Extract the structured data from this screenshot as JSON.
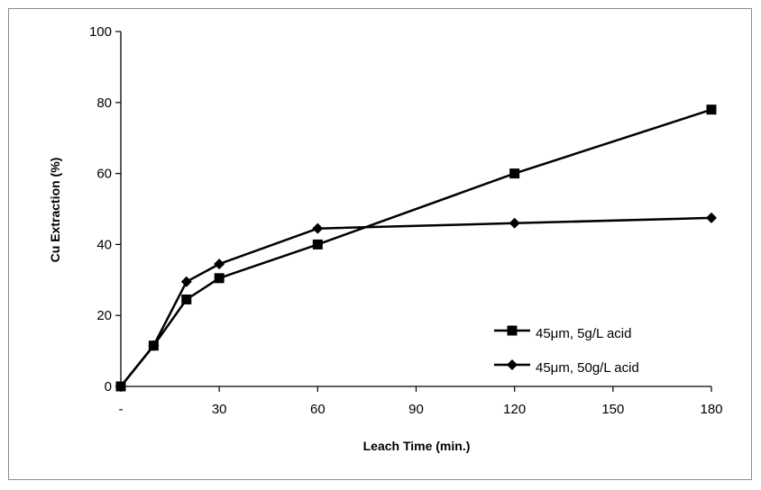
{
  "chart_data": {
    "type": "line",
    "title": "",
    "xlabel": "Leach Time (min.)",
    "ylabel": "Cu Extraction  (%)",
    "xlim": [
      0,
      180
    ],
    "ylim": [
      0,
      100
    ],
    "x_ticks": [
      0,
      30,
      60,
      90,
      120,
      150,
      180
    ],
    "x_tick_labels": [
      "-",
      "30",
      "60",
      "90",
      "120",
      "150",
      "180"
    ],
    "y_ticks": [
      0,
      20,
      40,
      60,
      80,
      100
    ],
    "y_tick_labels": [
      "0",
      "20",
      "40",
      "60",
      "80",
      "100"
    ],
    "grid": false,
    "legend_position": "bottom-right",
    "series": [
      {
        "name": "45μm, 5g/L acid",
        "marker": "square",
        "color": "#000000",
        "x": [
          0,
          10,
          20,
          30,
          60,
          120,
          180
        ],
        "values": [
          0,
          11.5,
          24.5,
          30.5,
          40,
          60,
          78
        ]
      },
      {
        "name": "45μm, 50g/L acid",
        "marker": "diamond",
        "color": "#000000",
        "x": [
          0,
          10,
          20,
          30,
          60,
          120,
          180
        ],
        "values": [
          0,
          11.5,
          29.5,
          34.5,
          44.5,
          46,
          47.5
        ]
      }
    ]
  }
}
